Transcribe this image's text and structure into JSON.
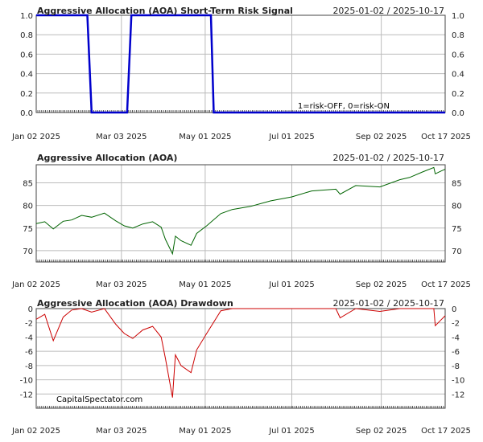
{
  "x_axis_labels": [
    "Jan 02 2025",
    "Mar 03 2025",
    "May 01 2025",
    "Jul 01 2025",
    "Sep 02 2025",
    "Oct 17 2025"
  ],
  "watermark": "CapitalSpectator.com",
  "chart_data": [
    {
      "type": "line",
      "title": "Aggressive Allocation (AOA) Short-Term Risk Signal",
      "date_range": "2025-01-02 / 2025-10-17",
      "annotation": "1=risk-OFF, 0=risk-ON",
      "ylim": [
        0,
        1
      ],
      "y_ticks": [
        "0.0",
        "0.2",
        "0.4",
        "0.6",
        "0.8",
        "1.0"
      ],
      "grid": true,
      "color": "#0000cc",
      "x": [
        "2025-01-02",
        "2025-02-07",
        "2025-02-10",
        "2025-03-07",
        "2025-03-10",
        "2025-05-05",
        "2025-05-07",
        "2025-10-17"
      ],
      "values": [
        1,
        1,
        0,
        0,
        1,
        1,
        0,
        0
      ]
    },
    {
      "type": "line",
      "title": "Aggressive Allocation (AOA)",
      "date_range": "2025-01-02 / 2025-10-17",
      "ylim": [
        67.5,
        89
      ],
      "y_ticks": [
        "70",
        "75",
        "80",
        "85"
      ],
      "grid": true,
      "color": "#006400",
      "x": [
        "2025-01-02",
        "2025-01-08",
        "2025-01-14",
        "2025-01-21",
        "2025-01-27",
        "2025-02-03",
        "2025-02-10",
        "2025-02-19",
        "2025-02-27",
        "2025-03-05",
        "2025-03-11",
        "2025-03-18",
        "2025-03-25",
        "2025-03-31",
        "2025-04-03",
        "2025-04-08",
        "2025-04-10",
        "2025-04-14",
        "2025-04-21",
        "2025-04-25",
        "2025-05-02",
        "2025-05-12",
        "2025-05-20",
        "2025-06-02",
        "2025-06-16",
        "2025-07-01",
        "2025-07-15",
        "2025-08-01",
        "2025-08-04",
        "2025-08-15",
        "2025-09-01",
        "2025-09-15",
        "2025-09-22",
        "2025-10-01",
        "2025-10-09",
        "2025-10-10",
        "2025-10-14",
        "2025-10-17"
      ],
      "values": [
        76.0,
        76.4,
        74.8,
        76.5,
        76.8,
        77.8,
        77.4,
        78.3,
        76.6,
        75.5,
        75.0,
        75.9,
        76.4,
        75.2,
        72.5,
        69.3,
        73.2,
        72.2,
        71.2,
        73.8,
        75.5,
        78.2,
        79.1,
        79.8,
        81.0,
        81.9,
        83.2,
        83.6,
        82.5,
        84.4,
        84.1,
        85.7,
        86.2,
        87.4,
        88.4,
        87.0,
        87.6,
        88.0
      ]
    },
    {
      "type": "line",
      "title": "Aggressive Allocation (AOA) Drawdown",
      "date_range": "2025-01-02 / 2025-10-17",
      "ylim": [
        -14,
        0
      ],
      "y_ticks": [
        "0",
        "-2",
        "-4",
        "-6",
        "-8",
        "-10",
        "-12"
      ],
      "grid": true,
      "color": "#cc0000",
      "x": [
        "2025-01-02",
        "2025-01-08",
        "2025-01-14",
        "2025-01-21",
        "2025-01-27",
        "2025-02-03",
        "2025-02-10",
        "2025-02-19",
        "2025-02-27",
        "2025-03-05",
        "2025-03-11",
        "2025-03-18",
        "2025-03-25",
        "2025-03-31",
        "2025-04-03",
        "2025-04-08",
        "2025-04-10",
        "2025-04-14",
        "2025-04-21",
        "2025-04-25",
        "2025-05-02",
        "2025-05-12",
        "2025-05-20",
        "2025-06-02",
        "2025-06-16",
        "2025-07-01",
        "2025-07-15",
        "2025-08-01",
        "2025-08-04",
        "2025-08-15",
        "2025-09-01",
        "2025-09-15",
        "2025-09-22",
        "2025-10-01",
        "2025-10-09",
        "2025-10-10",
        "2025-10-14",
        "2025-10-17"
      ],
      "values": [
        -1.5,
        -0.8,
        -4.5,
        -1.2,
        -0.2,
        0,
        -0.5,
        0,
        -2.2,
        -3.5,
        -4.2,
        -3.0,
        -2.5,
        -4.0,
        -7.0,
        -12.5,
        -6.5,
        -8.0,
        -9.0,
        -5.8,
        -3.5,
        -0.3,
        0,
        0,
        0,
        0,
        0,
        0,
        -1.3,
        0,
        -0.4,
        0,
        0,
        0,
        0,
        -2.4,
        -1.6,
        -1.0
      ]
    }
  ]
}
